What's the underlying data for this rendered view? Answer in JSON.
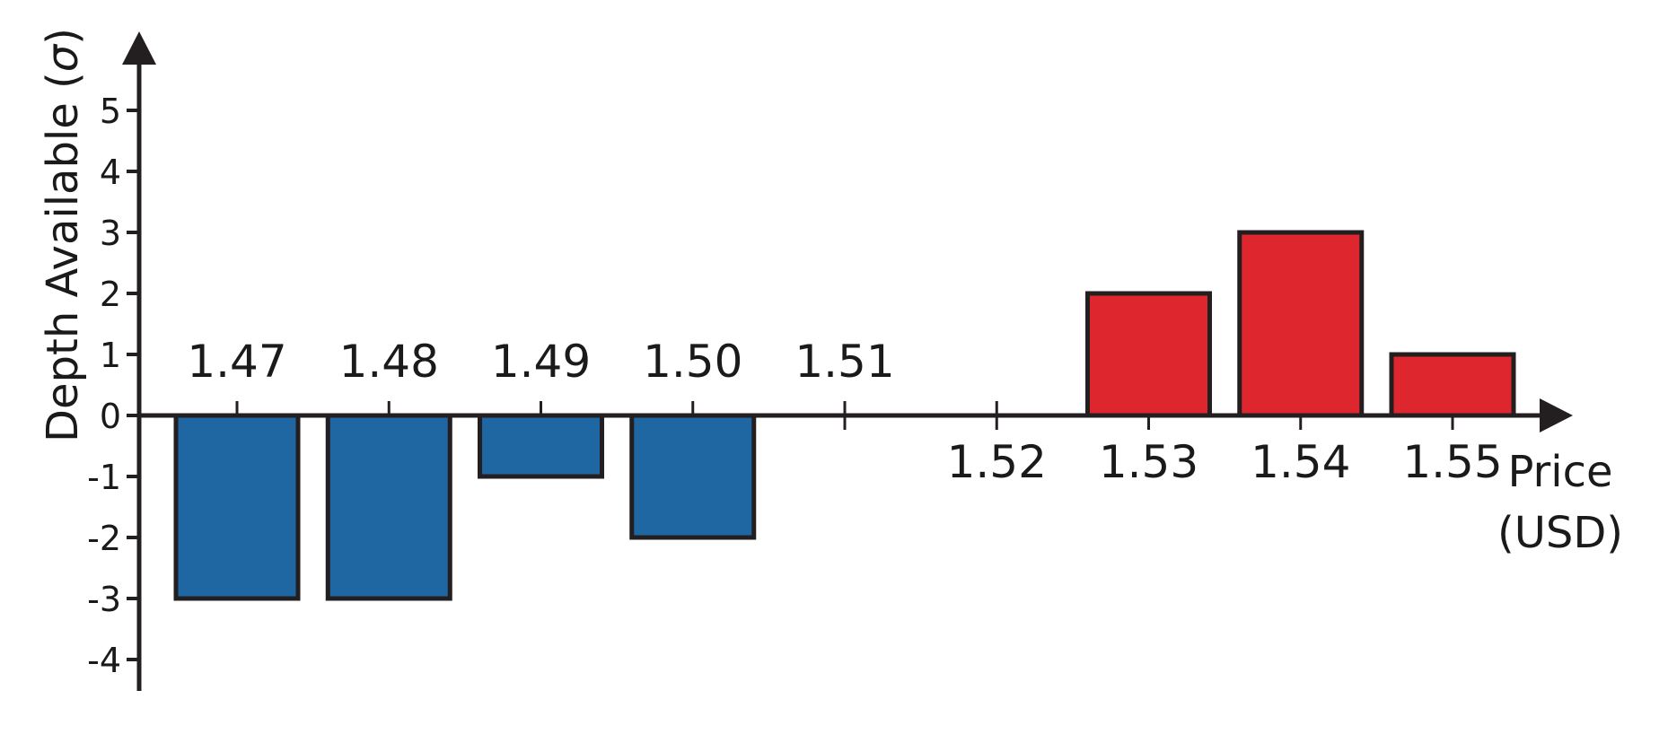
{
  "chart_data": {
    "type": "bar",
    "title": "",
    "xlabel": "Price (USD)",
    "xlabel_lines": [
      "Price",
      "(USD)"
    ],
    "ylabel": "Depth Available (",
    "ylabel_symbol": "σ",
    "ylabel_close": ")",
    "ylim": [
      -4,
      5
    ],
    "y_ticks": [
      "5",
      "4",
      "3",
      "2",
      "1",
      "0",
      "-1",
      "-2",
      "-3",
      "-4"
    ],
    "categories": [
      "1.47",
      "1.48",
      "1.49",
      "1.50",
      "1.51",
      "1.52",
      "1.53",
      "1.54",
      "1.55"
    ],
    "values": [
      -3,
      -3,
      -1,
      -2,
      0,
      0,
      2,
      3,
      1
    ],
    "colors": {
      "bid": "#1e67a2",
      "ask": "#dd262d",
      "axis": "#231f20"
    },
    "grid": false,
    "legend": "none"
  }
}
